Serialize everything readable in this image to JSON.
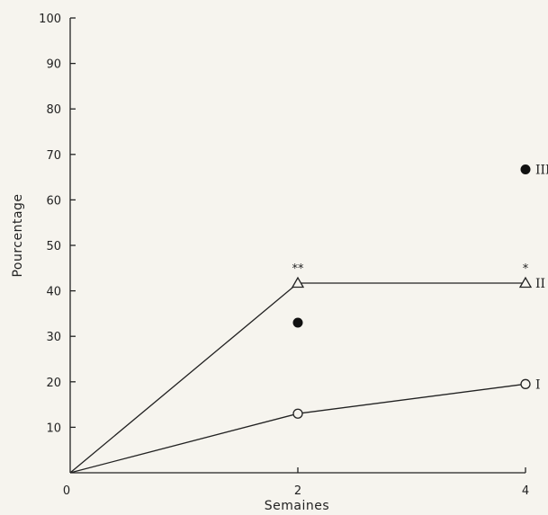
{
  "chart_data": {
    "type": "line",
    "xlabel": "Semaines",
    "ylabel": "Pourcentage",
    "xlim": [
      0,
      4
    ],
    "ylim": [
      0,
      100
    ],
    "xticks": [
      "0",
      "2",
      "4"
    ],
    "yticks": [
      "10",
      "20",
      "30",
      "40",
      "50",
      "60",
      "70",
      "80",
      "90",
      "100"
    ],
    "grid": false,
    "series": [
      {
        "name": "I",
        "marker": "open-circle",
        "line": "solid",
        "x": [
          0,
          2,
          4
        ],
        "y": [
          0,
          13,
          19.5
        ]
      },
      {
        "name": "II",
        "marker": "open-triangle",
        "line": "solid",
        "x": [
          0,
          2,
          4
        ],
        "y": [
          0,
          41.7,
          41.7
        ]
      },
      {
        "name": "III",
        "marker": "filled-circle",
        "line": "dashed",
        "x": [
          0,
          2,
          4
        ],
        "y": [
          0,
          33,
          66.7
        ],
        "line_points": [
          0,
          4
        ]
      }
    ],
    "annotations": [
      {
        "text": "**",
        "x": 2,
        "y": 41.7
      },
      {
        "text": "*",
        "x": 4,
        "y": 41.7
      }
    ]
  }
}
